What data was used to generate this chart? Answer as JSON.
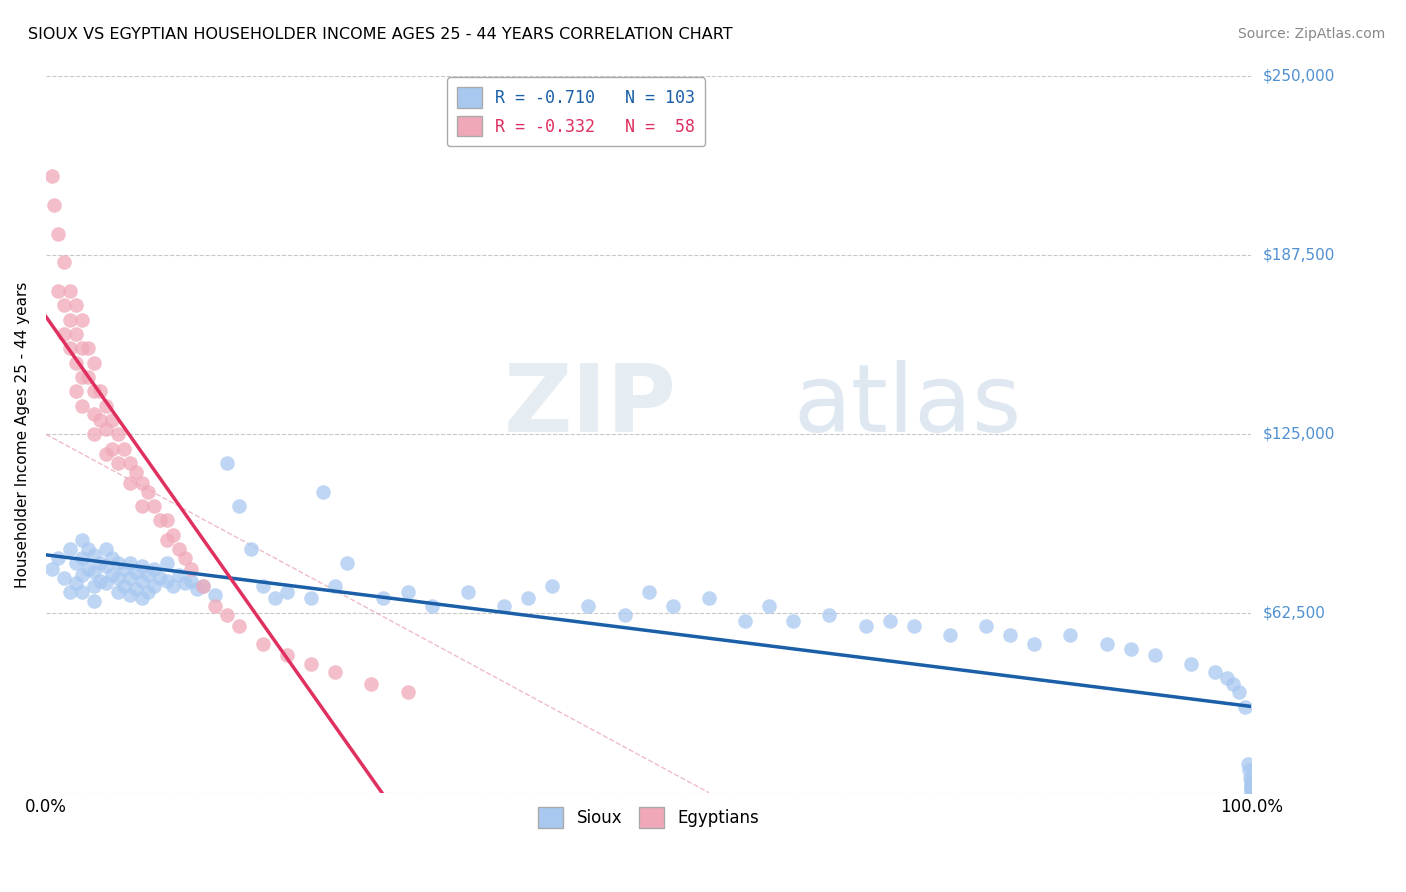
{
  "title": "SIOUX VS EGYPTIAN HOUSEHOLDER INCOME AGES 25 - 44 YEARS CORRELATION CHART",
  "source": "Source: ZipAtlas.com",
  "ylabel": "Householder Income Ages 25 - 44 years",
  "xlim": [
    0.0,
    1.0
  ],
  "ylim": [
    0,
    250000
  ],
  "yticks": [
    0,
    62500,
    125000,
    187500,
    250000
  ],
  "ytick_labels": [
    "",
    "$62,500",
    "$125,000",
    "$187,500",
    "$250,000"
  ],
  "bg_color": "#ffffff",
  "grid_color": "#c8c8c8",
  "sioux_color": "#a8c8f0",
  "egyptian_color": "#f0a8b8",
  "sioux_line_color": "#1a5fa8",
  "egyptian_line_color": "#e03060",
  "dashed_line_color": "#e8a0b0",
  "ytick_color": "#5090d0",
  "sioux_R": -0.71,
  "sioux_N": 103,
  "egyptian_R": -0.332,
  "egyptian_N": 58,
  "sioux_x": [
    0.005,
    0.01,
    0.015,
    0.02,
    0.02,
    0.025,
    0.025,
    0.03,
    0.03,
    0.03,
    0.03,
    0.035,
    0.035,
    0.04,
    0.04,
    0.04,
    0.04,
    0.045,
    0.045,
    0.05,
    0.05,
    0.05,
    0.055,
    0.055,
    0.06,
    0.06,
    0.06,
    0.065,
    0.065,
    0.07,
    0.07,
    0.07,
    0.075,
    0.075,
    0.08,
    0.08,
    0.08,
    0.085,
    0.085,
    0.09,
    0.09,
    0.095,
    0.1,
    0.1,
    0.105,
    0.11,
    0.115,
    0.12,
    0.125,
    0.13,
    0.14,
    0.15,
    0.16,
    0.17,
    0.18,
    0.19,
    0.2,
    0.22,
    0.23,
    0.24,
    0.25,
    0.28,
    0.3,
    0.32,
    0.35,
    0.38,
    0.4,
    0.42,
    0.45,
    0.48,
    0.5,
    0.52,
    0.55,
    0.58,
    0.6,
    0.62,
    0.65,
    0.68,
    0.7,
    0.72,
    0.75,
    0.78,
    0.8,
    0.82,
    0.85,
    0.88,
    0.9,
    0.92,
    0.95,
    0.97,
    0.98,
    0.985,
    0.99,
    0.995,
    0.997,
    0.998,
    0.999,
    0.9995,
    1.0,
    1.0,
    1.0,
    1.0,
    1.0
  ],
  "sioux_y": [
    78000,
    82000,
    75000,
    85000,
    70000,
    80000,
    73000,
    88000,
    82000,
    76000,
    70000,
    85000,
    78000,
    83000,
    77000,
    72000,
    67000,
    80000,
    74000,
    85000,
    79000,
    73000,
    82000,
    76000,
    80000,
    75000,
    70000,
    78000,
    72000,
    80000,
    75000,
    69000,
    77000,
    71000,
    79000,
    74000,
    68000,
    76000,
    70000,
    78000,
    72000,
    75000,
    80000,
    74000,
    72000,
    76000,
    73000,
    74000,
    71000,
    72000,
    69000,
    115000,
    100000,
    85000,
    72000,
    68000,
    70000,
    68000,
    105000,
    72000,
    80000,
    68000,
    70000,
    65000,
    70000,
    65000,
    68000,
    72000,
    65000,
    62000,
    70000,
    65000,
    68000,
    60000,
    65000,
    60000,
    62000,
    58000,
    60000,
    58000,
    55000,
    58000,
    55000,
    52000,
    55000,
    52000,
    50000,
    48000,
    45000,
    42000,
    40000,
    38000,
    35000,
    30000,
    10000,
    8000,
    5000,
    4000,
    3000,
    2000,
    2000,
    1000,
    0
  ],
  "egyptian_x": [
    0.005,
    0.007,
    0.01,
    0.01,
    0.015,
    0.015,
    0.015,
    0.02,
    0.02,
    0.02,
    0.025,
    0.025,
    0.025,
    0.025,
    0.03,
    0.03,
    0.03,
    0.03,
    0.035,
    0.035,
    0.04,
    0.04,
    0.04,
    0.04,
    0.045,
    0.045,
    0.05,
    0.05,
    0.05,
    0.055,
    0.055,
    0.06,
    0.06,
    0.065,
    0.07,
    0.07,
    0.075,
    0.08,
    0.08,
    0.085,
    0.09,
    0.095,
    0.1,
    0.1,
    0.105,
    0.11,
    0.115,
    0.12,
    0.13,
    0.14,
    0.15,
    0.16,
    0.18,
    0.2,
    0.22,
    0.24,
    0.27,
    0.3
  ],
  "egyptian_y": [
    215000,
    205000,
    195000,
    175000,
    185000,
    170000,
    160000,
    175000,
    165000,
    155000,
    170000,
    160000,
    150000,
    140000,
    165000,
    155000,
    145000,
    135000,
    155000,
    145000,
    150000,
    140000,
    132000,
    125000,
    140000,
    130000,
    135000,
    127000,
    118000,
    130000,
    120000,
    125000,
    115000,
    120000,
    115000,
    108000,
    112000,
    108000,
    100000,
    105000,
    100000,
    95000,
    95000,
    88000,
    90000,
    85000,
    82000,
    78000,
    72000,
    65000,
    62000,
    58000,
    52000,
    48000,
    45000,
    42000,
    38000,
    35000
  ]
}
